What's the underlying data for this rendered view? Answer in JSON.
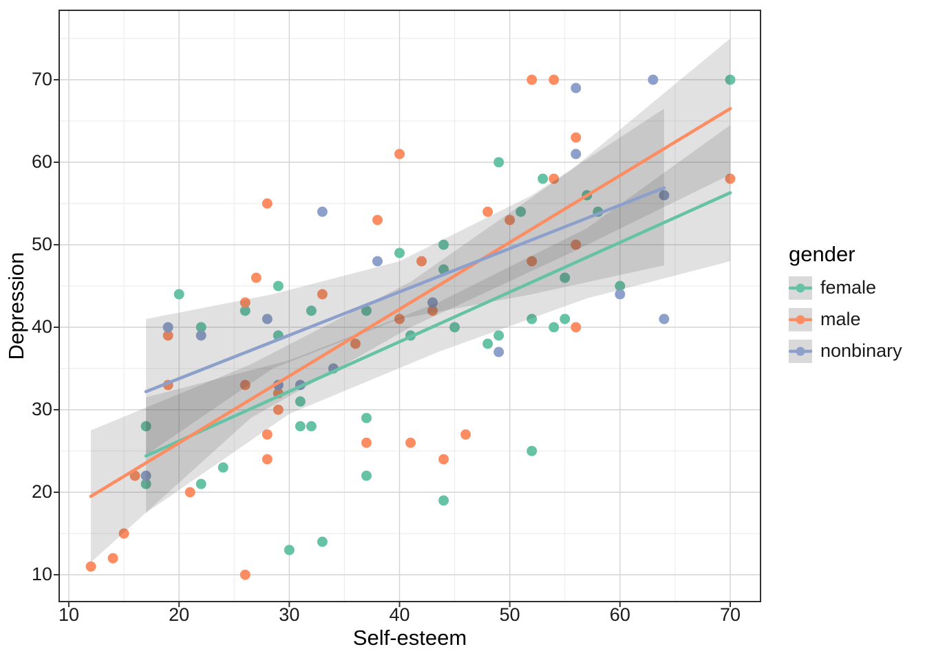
{
  "chart_data": {
    "type": "scatter",
    "title": "",
    "xlabel": "Self-esteem",
    "ylabel": "Depression",
    "xlim": [
      9,
      72.7
    ],
    "ylim": [
      6.7,
      78.4
    ],
    "x_ticks": [
      10,
      20,
      30,
      40,
      50,
      60,
      70
    ],
    "y_ticks": [
      10,
      20,
      30,
      40,
      50,
      60,
      70
    ],
    "x_minor": [
      15,
      25,
      35,
      45,
      55,
      65
    ],
    "y_minor": [
      15,
      25,
      35,
      45,
      55,
      65,
      75
    ],
    "grid": "on",
    "legend_position": "right",
    "legend_title": "gender",
    "band_fill": "rgba(80,80,80,0.17)",
    "series": [
      {
        "name": "female",
        "color": "#66C2A5",
        "points": [
          [
            20,
            44
          ],
          [
            29,
            45
          ],
          [
            26,
            42
          ],
          [
            32,
            42
          ],
          [
            37,
            42
          ],
          [
            22,
            40
          ],
          [
            29,
            39
          ],
          [
            41,
            39
          ],
          [
            45,
            40
          ],
          [
            44,
            50
          ],
          [
            40,
            49
          ],
          [
            44,
            47
          ],
          [
            49,
            60
          ],
          [
            51,
            54
          ],
          [
            70,
            70
          ],
          [
            53,
            58
          ],
          [
            57,
            56
          ],
          [
            58,
            54
          ],
          [
            55,
            46
          ],
          [
            60,
            45
          ],
          [
            52,
            41
          ],
          [
            55,
            41
          ],
          [
            54,
            40
          ],
          [
            48,
            38
          ],
          [
            49,
            39
          ],
          [
            31,
            31
          ],
          [
            31,
            28
          ],
          [
            32,
            28
          ],
          [
            37,
            29
          ],
          [
            37,
            22
          ],
          [
            44,
            19
          ],
          [
            33,
            14
          ],
          [
            30,
            13
          ],
          [
            52,
            25
          ],
          [
            17,
            28
          ],
          [
            17,
            21
          ],
          [
            22,
            21
          ],
          [
            24,
            23
          ]
        ],
        "regression": {
          "x1": 17,
          "y1": 24.4,
          "x2": 70,
          "y2": 56.3
        },
        "band": {
          "top": [
            [
              17,
              31.5
            ],
            [
              30,
              36
            ],
            [
              43.5,
              43
            ],
            [
              57,
              52
            ],
            [
              70,
              64.5
            ]
          ],
          "bottom": [
            [
              70,
              48
            ],
            [
              57,
              43.5
            ],
            [
              43.5,
              37
            ],
            [
              30,
              29.5
            ],
            [
              17,
              17.5
            ]
          ]
        }
      },
      {
        "name": "male",
        "color": "#FC8D62",
        "points": [
          [
            12,
            11
          ],
          [
            14,
            12
          ],
          [
            15,
            15
          ],
          [
            16,
            22
          ],
          [
            21,
            20
          ],
          [
            26,
            10
          ],
          [
            19,
            33
          ],
          [
            19,
            39
          ],
          [
            26,
            33
          ],
          [
            28,
            55
          ],
          [
            27,
            46
          ],
          [
            26,
            43
          ],
          [
            29,
            30
          ],
          [
            29,
            32
          ],
          [
            28,
            27
          ],
          [
            28,
            24
          ],
          [
            33,
            44
          ],
          [
            36,
            38
          ],
          [
            38,
            53
          ],
          [
            40,
            61
          ],
          [
            40,
            41
          ],
          [
            42,
            48
          ],
          [
            43,
            42
          ],
          [
            37,
            26
          ],
          [
            41,
            26
          ],
          [
            44,
            24
          ],
          [
            46,
            27
          ],
          [
            48,
            54
          ],
          [
            50,
            53
          ],
          [
            52,
            70
          ],
          [
            54,
            70
          ],
          [
            54,
            58
          ],
          [
            56,
            63
          ],
          [
            56,
            50
          ],
          [
            56,
            40
          ],
          [
            52,
            48
          ],
          [
            70,
            58
          ]
        ],
        "regression": {
          "x1": 12,
          "y1": 19.5,
          "x2": 70,
          "y2": 66.5
        },
        "band": {
          "top": [
            [
              12,
              27.5
            ],
            [
              26.5,
              35.5
            ],
            [
              41,
              45.5
            ],
            [
              55.5,
              59
            ],
            [
              70,
              75
            ]
          ],
          "bottom": [
            [
              70,
              58.5
            ],
            [
              55.5,
              49
            ],
            [
              41,
              40
            ],
            [
              26.5,
              29
            ],
            [
              12,
              11.5
            ]
          ]
        }
      },
      {
        "name": "nonbinary",
        "color": "#8DA0CB",
        "points": [
          [
            17,
            22
          ],
          [
            19,
            40
          ],
          [
            22,
            39
          ],
          [
            28,
            41
          ],
          [
            29,
            33
          ],
          [
            31,
            33
          ],
          [
            34,
            35
          ],
          [
            33,
            54
          ],
          [
            38,
            48
          ],
          [
            43,
            43
          ],
          [
            49,
            37
          ],
          [
            56,
            69
          ],
          [
            56,
            61
          ],
          [
            63,
            70
          ],
          [
            64,
            56
          ],
          [
            64,
            41
          ],
          [
            60,
            44
          ]
        ],
        "regression": {
          "x1": 17,
          "y1": 32.2,
          "x2": 64,
          "y2": 56.9
        },
        "band": {
          "top": [
            [
              17,
              41
            ],
            [
              28.5,
              44
            ],
            [
              40,
              48
            ],
            [
              52,
              56
            ],
            [
              64,
              66.5
            ]
          ],
          "bottom": [
            [
              64,
              47.5
            ],
            [
              52,
              44
            ],
            [
              40,
              41
            ],
            [
              28.5,
              35
            ],
            [
              17,
              24.5
            ]
          ]
        }
      }
    ]
  },
  "legend": {
    "title": "gender",
    "items": [
      {
        "label": "female",
        "color": "#66C2A5"
      },
      {
        "label": "male",
        "color": "#FC8D62"
      },
      {
        "label": "nonbinary",
        "color": "#8DA0CB"
      }
    ]
  },
  "style_colors": {
    "major_grid": "#d4d4d4",
    "minor_grid": "#eaeaea",
    "panel_border": "#2f2f2f",
    "tick_text": "#1a1a1a",
    "title_text": "#000000",
    "legend_key_bg": "#d9d9d9"
  }
}
